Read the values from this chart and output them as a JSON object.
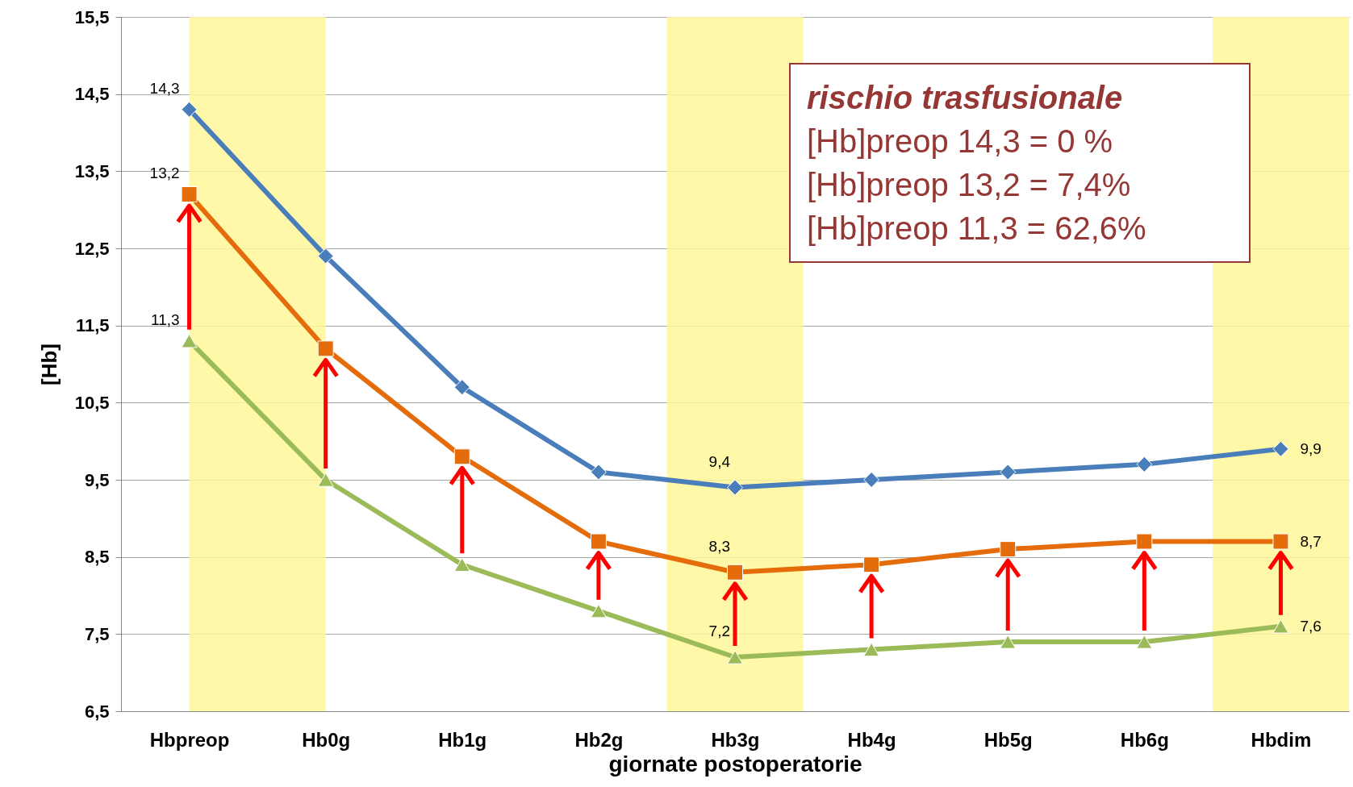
{
  "chart_data": {
    "type": "line",
    "xlabel": "giornate postoperatorie",
    "ylabel": "[Hb]",
    "categories": [
      "Hbpreop",
      "Hb0g",
      "Hb1g",
      "Hb2g",
      "Hb3g",
      "Hb4g",
      "Hb5g",
      "Hb6g",
      "Hbdim"
    ],
    "series": [
      {
        "color": "#4a7ebb",
        "marker": "diamond",
        "values": [
          14.3,
          12.4,
          10.7,
          9.6,
          9.4,
          9.5,
          9.6,
          9.7,
          9.9
        ],
        "value_labels": [
          "14,3",
          null,
          null,
          null,
          "9,4",
          null,
          null,
          null,
          "9,9"
        ]
      },
      {
        "color": "#e46c0a",
        "marker": "square",
        "values": [
          13.2,
          11.2,
          9.8,
          8.7,
          8.3,
          8.4,
          8.6,
          8.7,
          8.7
        ],
        "value_labels": [
          "13,2",
          null,
          null,
          null,
          "8,3",
          null,
          null,
          null,
          "8,7"
        ]
      },
      {
        "color": "#9bbb59",
        "marker": "triangle",
        "values": [
          11.3,
          9.5,
          8.4,
          7.8,
          7.2,
          7.3,
          7.4,
          7.4,
          7.6
        ],
        "value_labels": [
          "11,3",
          null,
          null,
          null,
          "7,2",
          null,
          null,
          null,
          "7,6"
        ]
      }
    ],
    "ylim": [
      6.5,
      15.5
    ],
    "yticks": [
      {
        "value": 6.5,
        "label": "6,5"
      },
      {
        "value": 7.5,
        "label": "7,5"
      },
      {
        "value": 8.5,
        "label": "8,5"
      },
      {
        "value": 9.5,
        "label": "9,5"
      },
      {
        "value": 10.5,
        "label": "10,5"
      },
      {
        "value": 11.5,
        "label": "11,5"
      },
      {
        "value": 12.5,
        "label": "12,5"
      },
      {
        "value": 13.5,
        "label": "13,5"
      },
      {
        "value": 14.5,
        "label": "14,5"
      },
      {
        "value": 15.5,
        "label": "15,5"
      }
    ],
    "grid": "y",
    "line_style": "solid",
    "bands": [
      {
        "axis": "x",
        "from": "Hbpreop",
        "to": "Hb0g",
        "color": "#fff799"
      },
      {
        "axis": "x",
        "from": "Hb3g",
        "to": "Hb3g",
        "color": "#fff799"
      },
      {
        "axis": "x",
        "from": "Hbdim",
        "to": "Hbdim",
        "color": "#fff799"
      }
    ],
    "annotations": [
      "rischio trasfusionale",
      "[Hb]preop 14,3 = 0 %",
      "[Hb]preop 13,2 = 7,4%",
      "[Hb]preop 11,3 = 62,6%"
    ]
  }
}
